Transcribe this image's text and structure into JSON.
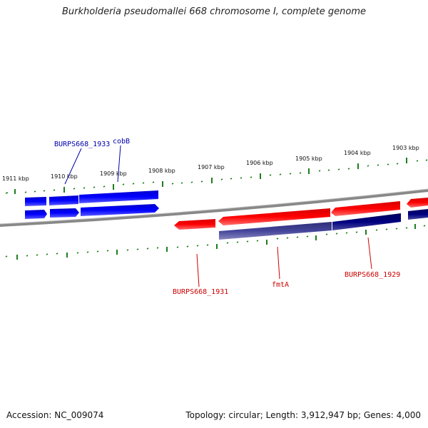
{
  "title": "Burkholderia pseudomallei 668 chromosome I, complete genome",
  "footer": {
    "accession": "Accession: NC_009074",
    "summary": "Topology: circular; Length: 3,912,947 bp; Genes: 4,000"
  },
  "colors": {
    "forward_gene": "#0000ff",
    "reverse_gene": "#ff0000",
    "reverse_cds": "#3b3b8f",
    "forward_cds": "#00007f",
    "backbone": "#888888",
    "ticks": "#1e7d1e",
    "forward_label": "#0000aa",
    "reverse_label": "#cc0000"
  },
  "ticks": [
    "1911 kbp",
    "1910 kbp",
    "1909 kbp",
    "1908 kbp",
    "1907 kbp",
    "1906 kbp",
    "1905 kbp",
    "1904 kbp",
    "1903 kbp"
  ],
  "gene_labels": {
    "burps668_1933": "BURPS668_1933",
    "cobB": "cobB",
    "burps668_1931": "BURPS668_1931",
    "fmtA": "fmtA",
    "burps668_1929": "BURPS668_1929"
  }
}
